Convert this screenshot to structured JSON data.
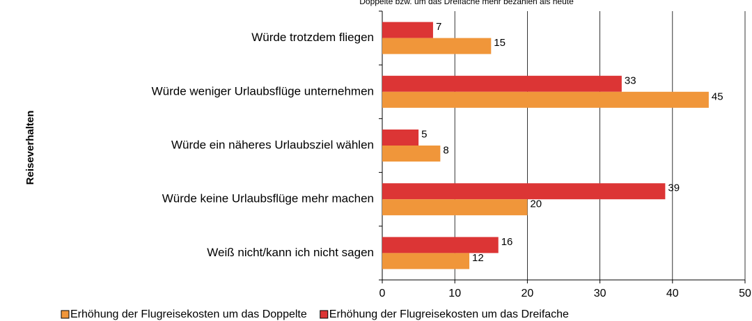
{
  "chart_data": {
    "type": "hbar",
    "title": "Doppelte bzw. um das Dreifache mehr bezahlen als heute",
    "y_label": "Reiseverhalten",
    "categories": [
      "Würde trotzdem fliegen",
      "Würde weniger Urlaubsflüge unternehmen",
      "Würde ein näheres Urlaubsziel wählen",
      "Würde keine Urlaubsflüge mehr machen",
      "Weiß nicht/kann ich nicht sagen"
    ],
    "series": [
      {
        "name": "Erhöhung der Flugreisekosten um das Doppelte",
        "color": "#f0963a",
        "values": [
          15,
          45,
          8,
          20,
          12
        ]
      },
      {
        "name": "Erhöhung der Flugreisekosten um das Dreifache",
        "color": "#dc3535",
        "values": [
          7,
          33,
          5,
          39,
          16
        ]
      }
    ],
    "xlim": [
      0,
      50
    ],
    "xticks": [
      0,
      10,
      20,
      30,
      40,
      50
    ],
    "grid": true
  }
}
